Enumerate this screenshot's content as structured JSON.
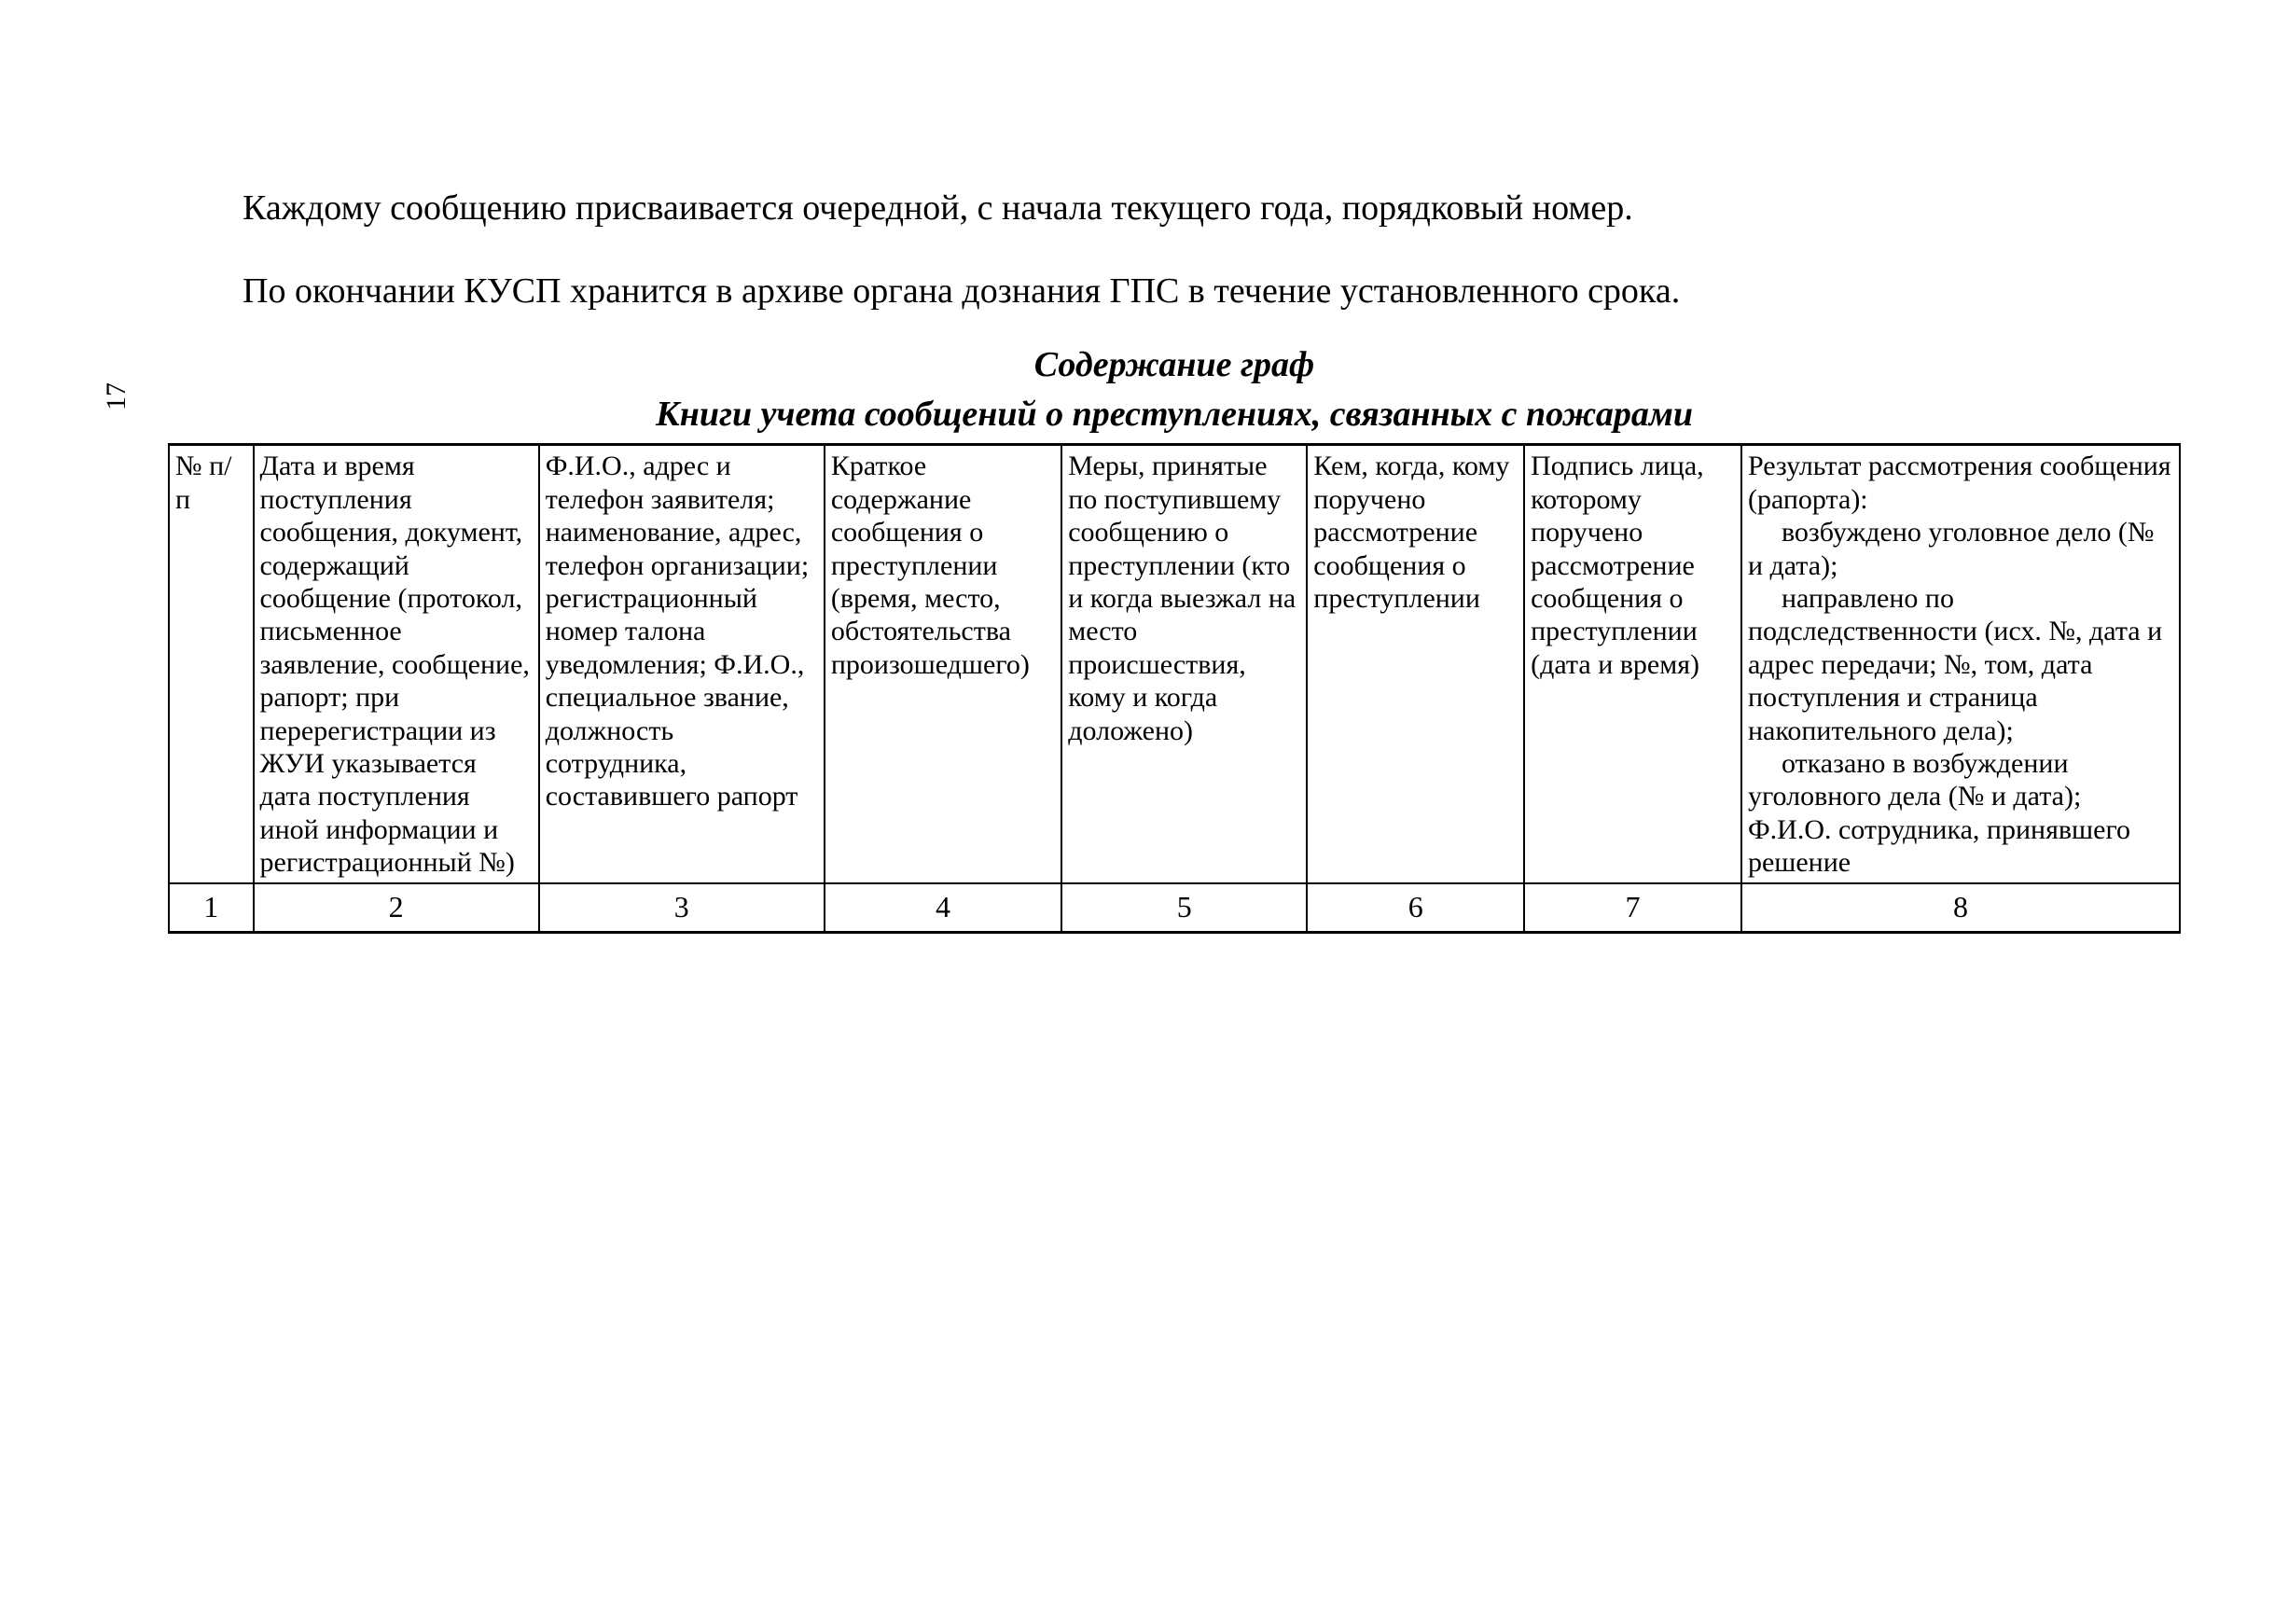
{
  "page_number": "17",
  "paragraph1": "Каждому сообщению присваивается очередной, с начала текущего года, порядковый номер.",
  "paragraph2": "По окончании КУСП хранится в архиве органа дознания ГПС в течение установленного срока.",
  "table_title": "Содержание граф",
  "table_subtitle": "Книги учета сообщений о преступлениях, связанных с пожарами",
  "table": {
    "type": "table",
    "background_color": "#ffffff",
    "border_color": "#000000",
    "header_fontsize": 30,
    "num_fontsize": 32,
    "column_widths_pct": [
      4.2,
      14.2,
      14.2,
      11.8,
      12.2,
      10.8,
      10.8,
      21.8
    ],
    "columns": [
      "№ п/п",
      "Дата и время поступления сообщения, документ, содержащий сообщение (протокол, письменное заявление, сообщение, рапорт; при перерегистрации из ЖУИ указывается дата поступления иной информации и регистрационный №)",
      "Ф.И.О., адрес и телефон заявителя; наименование, адрес, телефон организации; регистрационный номер талона уведомления; Ф.И.О., специальное звание, должность сотрудника, составившего рапорт",
      "Краткое содержание сообщения о преступлении (время, место, обстоятельства произошедшего)",
      "Меры, принятые по поступившему сообщению о преступлении (кто и когда выезжал на место происшествия, кому и когда доложено)",
      "Кем, когда, кому поручено рассмотрение сообщения о преступлении",
      "Подпись лица, которому поручено рассмотрение сообщения о преступлении (дата и время)"
    ],
    "col8": {
      "intro": "Результат рассмотрения сообщения (рапорта):",
      "item1": "возбуждено уголовное дело (№ и дата);",
      "item2": "направлено по подследственности (исх. №, дата и адрес передачи; №, том, дата поступления и страница накопительного дела);",
      "item3": "отказано в возбуждении уголовного дела (№ и дата);",
      "tail": "Ф.И.О. сотрудника, принявшего решение"
    },
    "num_row": [
      "1",
      "2",
      "3",
      "4",
      "5",
      "6",
      "7",
      "8"
    ]
  }
}
